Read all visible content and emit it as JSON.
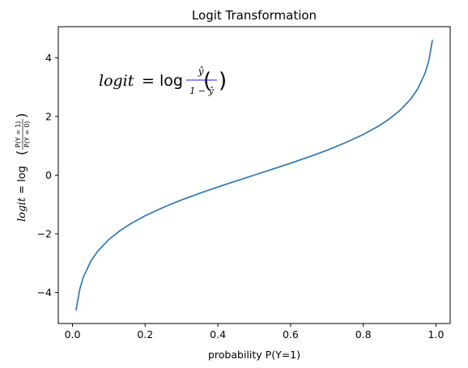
{
  "chart_data": {
    "type": "line",
    "title": "Logit Transformation",
    "xlabel": "probability P(Y=1)",
    "ylabel": {
      "lhs": "logit",
      "eq": " = log",
      "num": "P(Y = 1)",
      "den": "P(Y = 0)"
    },
    "xlim": [
      -0.039,
      1.039
    ],
    "ylim": [
      -5.06,
      5.06
    ],
    "x_ticks": [
      0.0,
      0.2,
      0.4,
      0.6,
      0.8,
      1.0
    ],
    "x_tick_labels": [
      "0.0",
      "0.2",
      "0.4",
      "0.6",
      "0.8",
      "1.0"
    ],
    "y_ticks": [
      -4,
      -2,
      0,
      2,
      4
    ],
    "y_tick_labels": [
      "−4",
      "−2",
      "0",
      "2",
      "4"
    ],
    "grid": false,
    "series": [
      {
        "color": "#2f77b4",
        "x": [
          0.01,
          0.02,
          0.03,
          0.05,
          0.07,
          0.1,
          0.13,
          0.16,
          0.2,
          0.25,
          0.3,
          0.35,
          0.4,
          0.45,
          0.5,
          0.55,
          0.6,
          0.65,
          0.7,
          0.75,
          0.8,
          0.84,
          0.87,
          0.9,
          0.93,
          0.95,
          0.97,
          0.98,
          0.99
        ],
        "y": [
          -4.595,
          -3.892,
          -3.476,
          -2.944,
          -2.586,
          -2.197,
          -1.901,
          -1.658,
          -1.386,
          -1.099,
          -0.847,
          -0.619,
          -0.405,
          -0.201,
          0.0,
          0.201,
          0.405,
          0.619,
          0.847,
          1.099,
          1.386,
          1.658,
          1.901,
          2.197,
          2.586,
          2.944,
          3.476,
          3.892,
          4.595
        ]
      }
    ],
    "annotation": {
      "lhs": "logit",
      "eq": " = log",
      "num": "ŷ",
      "den": "1 − ŷ",
      "color": "#1a1ae6"
    }
  }
}
